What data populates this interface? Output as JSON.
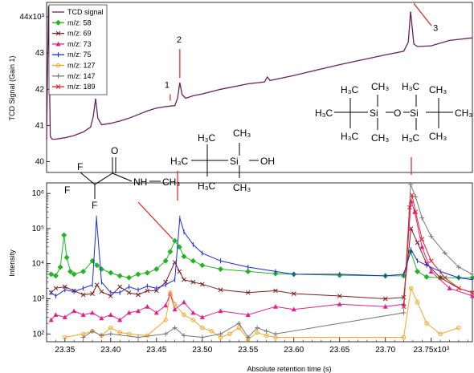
{
  "chart_data": [
    {
      "type": "line",
      "ylabel": "TCD Signal (Gain 1)",
      "ylim": [
        39.7,
        44.4
      ],
      "xlim": [
        23.33,
        23.795
      ],
      "ytick_labels": [
        "40",
        "41",
        "42",
        "43",
        "44x10³"
      ],
      "yticks": [
        40,
        41,
        42,
        43,
        44
      ],
      "series": [
        {
          "name": "TCD signal",
          "color": "#6b1f5c",
          "x": [
            23.33,
            23.332,
            23.334,
            23.336,
            23.34,
            23.35,
            23.36,
            23.37,
            23.378,
            23.381,
            23.3835,
            23.386,
            23.39,
            23.4,
            23.41,
            23.42,
            23.43,
            23.44,
            23.45,
            23.46,
            23.47,
            23.473,
            23.4755,
            23.478,
            23.482,
            23.49,
            23.5,
            23.52,
            23.55,
            23.568,
            23.571,
            23.574,
            23.6,
            23.65,
            23.7,
            23.72,
            23.725,
            23.7275,
            23.731,
            23.735,
            23.75,
            23.77,
            23.795
          ],
          "y": [
            40.6,
            44.3,
            40.7,
            40.62,
            40.62,
            40.66,
            40.72,
            40.82,
            40.95,
            41.25,
            41.74,
            41.2,
            41.02,
            41.06,
            41.12,
            41.2,
            41.3,
            41.4,
            41.48,
            41.52,
            41.55,
            41.75,
            42.18,
            41.85,
            41.75,
            41.82,
            41.87,
            42.0,
            42.15,
            42.2,
            42.34,
            42.24,
            42.38,
            42.68,
            42.95,
            43.05,
            43.3,
            44.15,
            43.25,
            43.18,
            43.2,
            43.35,
            43.42
          ]
        }
      ],
      "annotations": [
        "1",
        "2",
        "3"
      ],
      "annotation_x": [
        23.465,
        23.4755,
        23.7275
      ],
      "annotation_y": [
        41.55,
        42.18,
        44.15
      ]
    },
    {
      "type": "line",
      "yscale": "log",
      "ylabel": "Intensity",
      "xlabel": "Absolute retention time (s)",
      "ylim": [
        60,
        2000000
      ],
      "xlim": [
        23.33,
        23.795
      ],
      "yticks": [
        100,
        1000,
        10000,
        100000,
        1000000
      ],
      "ytick_labels": [
        "10²",
        "10³",
        "10⁴",
        "10⁵",
        "10⁶"
      ],
      "xticks": [
        23.35,
        23.4,
        23.45,
        23.5,
        23.55,
        23.6,
        23.65,
        23.7,
        23.75
      ],
      "xtick_labels": [
        "23.35",
        "23.40",
        "23.45",
        "23.50",
        "23.55",
        "23.60",
        "23.65",
        "23.70",
        "23.75x10³"
      ],
      "series": [
        {
          "name": "m/z: 58",
          "color": "#22b422",
          "marker": "diamond",
          "x": [
            23.335,
            23.34,
            23.345,
            23.349,
            23.352,
            23.356,
            23.36,
            23.37,
            23.38,
            23.385,
            23.39,
            23.4,
            23.41,
            23.42,
            23.43,
            23.44,
            23.45,
            23.46,
            23.465,
            23.47,
            23.475,
            23.48,
            23.49,
            23.5,
            23.52,
            23.55,
            23.58,
            23.6,
            23.65,
            23.7,
            23.72,
            23.7275,
            23.735,
            23.745,
            23.76,
            23.78,
            23.795
          ],
          "y": [
            5000,
            4500,
            8000,
            65000,
            15000,
            6000,
            5000,
            6000,
            12000,
            9000,
            7000,
            5500,
            4500,
            4000,
            5000,
            5500,
            7000,
            12000,
            22000,
            45000,
            30000,
            16000,
            12000,
            9000,
            7000,
            6000,
            5200,
            5000,
            4700,
            4500,
            4500,
            22000,
            6000,
            4200,
            4000,
            4000,
            4000
          ]
        },
        {
          "name": "m/z: 69",
          "color": "#7a1e1e",
          "marker": "x",
          "x": [
            23.335,
            23.34,
            23.35,
            23.36,
            23.37,
            23.38,
            23.385,
            23.39,
            23.4,
            23.41,
            23.42,
            23.43,
            23.44,
            23.45,
            23.46,
            23.47,
            23.475,
            23.48,
            23.49,
            23.5,
            23.52,
            23.55,
            23.58,
            23.6,
            23.65,
            23.7,
            23.72,
            23.728,
            23.735,
            23.745,
            23.76,
            23.78,
            23.795
          ],
          "y": [
            1500,
            2000,
            2200,
            1700,
            1300,
            1400,
            2500,
            1600,
            1200,
            2200,
            1500,
            1300,
            1700,
            1700,
            3000,
            11000,
            6000,
            3500,
            3000,
            2600,
            1800,
            1500,
            1700,
            1400,
            1200,
            1000,
            1100,
            100000,
            40000,
            10000,
            4000,
            2000,
            1500
          ]
        },
        {
          "name": "m/z: 73",
          "color": "#e0208c",
          "marker": "triangle",
          "x": [
            23.335,
            23.34,
            23.35,
            23.36,
            23.37,
            23.38,
            23.39,
            23.4,
            23.41,
            23.42,
            23.43,
            23.44,
            23.45,
            23.46,
            23.465,
            23.47,
            23.48,
            23.49,
            23.5,
            23.52,
            23.55,
            23.58,
            23.6,
            23.65,
            23.7,
            23.72,
            23.728,
            23.732,
            23.74,
            23.75,
            23.77,
            23.795
          ],
          "y": [
            250,
            350,
            300,
            450,
            350,
            400,
            280,
            350,
            250,
            400,
            450,
            600,
            400,
            650,
            1400,
            500,
            800,
            400,
            300,
            450,
            350,
            600,
            500,
            700,
            600,
            700,
            600000,
            300000,
            30000,
            6000,
            2000,
            1200
          ]
        },
        {
          "name": "m/z: 75",
          "color": "#1a2ae0",
          "marker": "bar",
          "x": [
            23.335,
            23.34,
            23.35,
            23.36,
            23.37,
            23.38,
            23.3845,
            23.39,
            23.4,
            23.41,
            23.42,
            23.43,
            23.44,
            23.45,
            23.46,
            23.47,
            23.4755,
            23.48,
            23.49,
            23.5,
            23.52,
            23.55,
            23.58,
            23.6,
            23.65,
            23.7,
            23.72,
            23.728,
            23.735,
            23.745,
            23.76,
            23.78,
            23.795
          ],
          "y": [
            1500,
            1200,
            1800,
            1600,
            2000,
            2500,
            200000,
            3000,
            1500,
            1500,
            2200,
            1800,
            2300,
            2000,
            2500,
            3500,
            200000,
            80000,
            35000,
            20000,
            12000,
            8000,
            6000,
            5000,
            5000,
            4500,
            5000,
            25000,
            12000,
            9000,
            6000,
            4000,
            3500
          ]
        },
        {
          "name": "m/z: 127",
          "color": "#f5a623",
          "marker": "circle",
          "x": [
            23.35,
            23.37,
            23.38,
            23.39,
            23.4,
            23.41,
            23.42,
            23.44,
            23.46,
            23.465,
            23.47,
            23.48,
            23.49,
            23.5,
            23.51,
            23.52,
            23.53,
            23.54,
            23.55,
            23.56,
            23.57,
            23.58,
            23.72,
            23.728,
            23.735,
            23.745,
            23.76,
            23.78
          ],
          "y": [
            80,
            100,
            120,
            90,
            150,
            110,
            100,
            90,
            250,
            1500,
            700,
            350,
            250,
            150,
            120,
            80,
            100,
            150,
            70,
            110,
            90,
            80,
            80,
            2000,
            800,
            200,
            100,
            150
          ]
        },
        {
          "name": "m/z: 147",
          "color": "#777777",
          "marker": "plus",
          "x": [
            23.37,
            23.38,
            23.39,
            23.4,
            23.43,
            23.46,
            23.47,
            23.48,
            23.5,
            23.52,
            23.54,
            23.55,
            23.56,
            23.57,
            23.58,
            23.72,
            23.7275,
            23.733,
            23.74,
            23.75,
            23.765,
            23.78,
            23.795
          ],
          "y": [
            80,
            120,
            90,
            100,
            80,
            100,
            150,
            90,
            80,
            100,
            200,
            80,
            150,
            120,
            100,
            400,
            1800000,
            800000,
            200000,
            60000,
            20000,
            8000,
            5000
          ]
        },
        {
          "name": "m/z: 189",
          "color": "#e02020",
          "marker": "x",
          "x": [
            23.72,
            23.7265,
            23.729,
            23.733,
            23.74,
            23.75,
            23.765,
            23.78,
            23.795
          ],
          "y": [
            600,
            400000,
            900000,
            300000,
            50000,
            12000,
            4000,
            2000,
            1500
          ]
        }
      ],
      "molecules": [
        {
          "lines": [
            "CH₃"
          ]
        },
        {
          "lines": [
            "Si",
            "O",
            "Si"
          ]
        }
      ]
    }
  ]
}
